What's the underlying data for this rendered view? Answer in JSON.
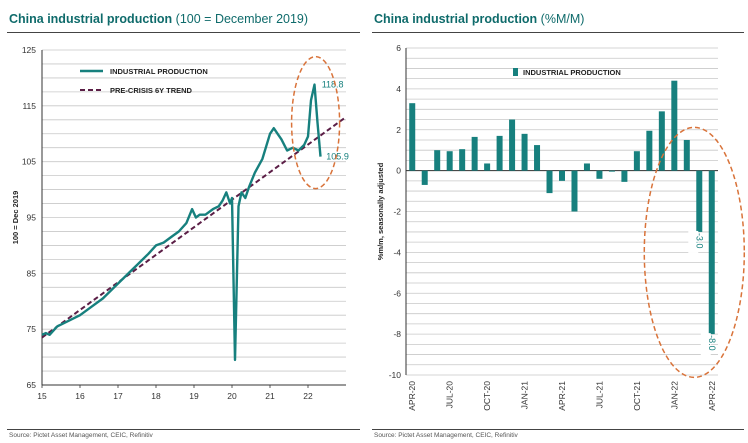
{
  "colors": {
    "teal": "#17807e",
    "trend": "#5b1e46",
    "circle": "#d9733a",
    "grid": "#c8c8c8",
    "title": "#0f6b6b"
  },
  "left": {
    "title_bold": "China industrial production",
    "title_rest": " (100 = December 2019)",
    "source": "Source: Pictet Asset Management, CEIC, Refinitiv"
  },
  "right": {
    "title_bold": "China industrial production",
    "title_rest": " (%M/M)",
    "source": "Source: Pictet Asset Management, CEIC, Refinitiv"
  },
  "chart_data": [
    {
      "type": "line",
      "title": "China industrial production (100 = December 2019)",
      "ylabel": "100 = Dec 2019",
      "xlim": [
        15,
        23
      ],
      "ylim": [
        65,
        125
      ],
      "x_ticks": [
        "15",
        "16",
        "17",
        "18",
        "19",
        "20",
        "21",
        "22"
      ],
      "y_ticks": [
        65,
        75,
        85,
        95,
        105,
        115,
        125
      ],
      "grid": "horizontal",
      "legend": "top-left",
      "series": [
        {
          "name": "INDUSTRIAL PRODUCTION",
          "style": "solid",
          "x": [
            15.0,
            15.1,
            15.2,
            15.4,
            15.7,
            16.0,
            16.3,
            16.6,
            16.9,
            17.2,
            17.5,
            17.8,
            18.0,
            18.2,
            18.4,
            18.6,
            18.8,
            18.95,
            19.05,
            19.15,
            19.3,
            19.5,
            19.65,
            19.75,
            19.85,
            19.95,
            20.0,
            20.08,
            20.17,
            20.25,
            20.35,
            20.45,
            20.6,
            20.8,
            21.0,
            21.1,
            21.2,
            21.3,
            21.45,
            21.6,
            21.75,
            21.9,
            22.0,
            22.08,
            22.17,
            22.25,
            22.33
          ],
          "y": [
            74.0,
            74.3,
            74.0,
            75.5,
            76.5,
            77.5,
            79.0,
            80.5,
            82.5,
            84.5,
            86.5,
            88.5,
            90.0,
            90.5,
            91.5,
            92.5,
            94.0,
            96.5,
            95.0,
            95.5,
            95.5,
            96.5,
            97.0,
            98.0,
            99.5,
            97.5,
            98.5,
            69.5,
            97.0,
            99.5,
            98.5,
            100.5,
            103.0,
            105.5,
            110.0,
            111.0,
            110.0,
            109.0,
            107.0,
            107.5,
            107.0,
            108.0,
            109.5,
            116.0,
            118.8,
            112.0,
            105.9
          ]
        },
        {
          "name": "PRE-CRISIS 6Y TREND",
          "style": "dashed",
          "x": [
            15.0,
            23.0
          ],
          "y": [
            73.5,
            113.0
          ]
        }
      ],
      "annotations": [
        {
          "text": "118.8",
          "x": 22.15,
          "y": 118.8
        },
        {
          "text": "105.9",
          "x": 22.35,
          "y": 105.9
        }
      ]
    },
    {
      "type": "bar",
      "title": "China industrial production (%M/M)",
      "ylabel": "%m/m, seasonally adjusted",
      "ylim": [
        -10,
        6
      ],
      "y_ticks": [
        -10,
        -8,
        -6,
        -4,
        -2,
        0,
        2,
        4,
        6
      ],
      "legend": "top-left",
      "series": [
        {
          "name": "INDUSTRIAL PRODUCTION"
        }
      ],
      "categories": [
        "APR-20",
        "MAY-20",
        "JUN-20",
        "JUL-20",
        "AUG-20",
        "SEP-20",
        "OCT-20",
        "NOV-20",
        "DEC-20",
        "JAN-21",
        "FEB-21",
        "MAR-21",
        "APR-21",
        "MAY-21",
        "JUN-21",
        "JUL-21",
        "AUG-21",
        "SEP-21",
        "OCT-21",
        "NOV-21",
        "DEC-21",
        "JAN-22",
        "FEB-22",
        "MAR-22",
        "APR-22"
      ],
      "tick_labels": [
        "APR-20",
        "JUL-20",
        "OCT-20",
        "JAN-21",
        "APR-21",
        "JUL-21",
        "OCT-21",
        "JAN-22",
        "APR-22"
      ],
      "values": [
        3.3,
        -0.7,
        1.0,
        0.95,
        1.05,
        1.65,
        0.35,
        1.7,
        2.5,
        1.8,
        1.25,
        -1.1,
        -0.5,
        -2.0,
        0.35,
        -0.4,
        -0.05,
        -0.55,
        0.95,
        1.95,
        2.9,
        4.4,
        1.5,
        -3.0,
        -8.0
      ],
      "annotations": [
        {
          "text": "-3.0",
          "category": "MAR-22"
        },
        {
          "text": "-8.0",
          "category": "APR-22"
        }
      ]
    }
  ]
}
